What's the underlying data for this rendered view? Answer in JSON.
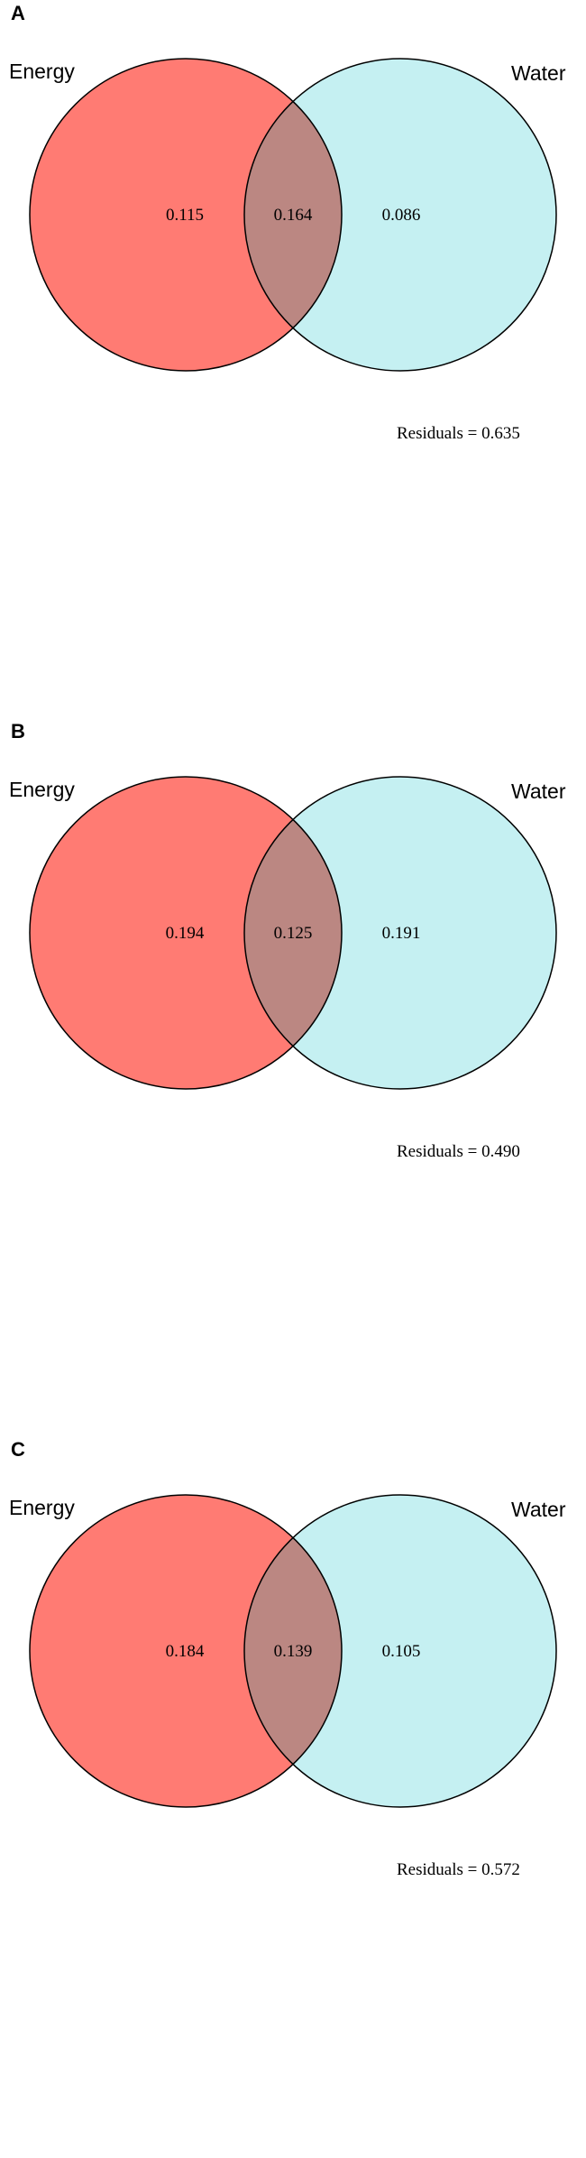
{
  "colors": {
    "set_a": "#ff7b73",
    "set_b": "#c5f0f2",
    "overlap": "#bb8782",
    "stroke": "#000000"
  },
  "panels": [
    {
      "label": "A",
      "set_a_label": "Energy",
      "set_b_label": "Water",
      "only_a": "0.115",
      "both": "0.164",
      "only_b": "0.086",
      "residuals": "Residuals = 0.635"
    },
    {
      "label": "B",
      "set_a_label": "Energy",
      "set_b_label": "Water",
      "only_a": "0.194",
      "both": "0.125",
      "only_b": "0.191",
      "residuals": "Residuals = 0.490"
    },
    {
      "label": "C",
      "set_a_label": "Energy",
      "set_b_label": "Water",
      "only_a": "0.184",
      "both": "0.139",
      "only_b": "0.105",
      "residuals": "Residuals = 0.572"
    }
  ]
}
